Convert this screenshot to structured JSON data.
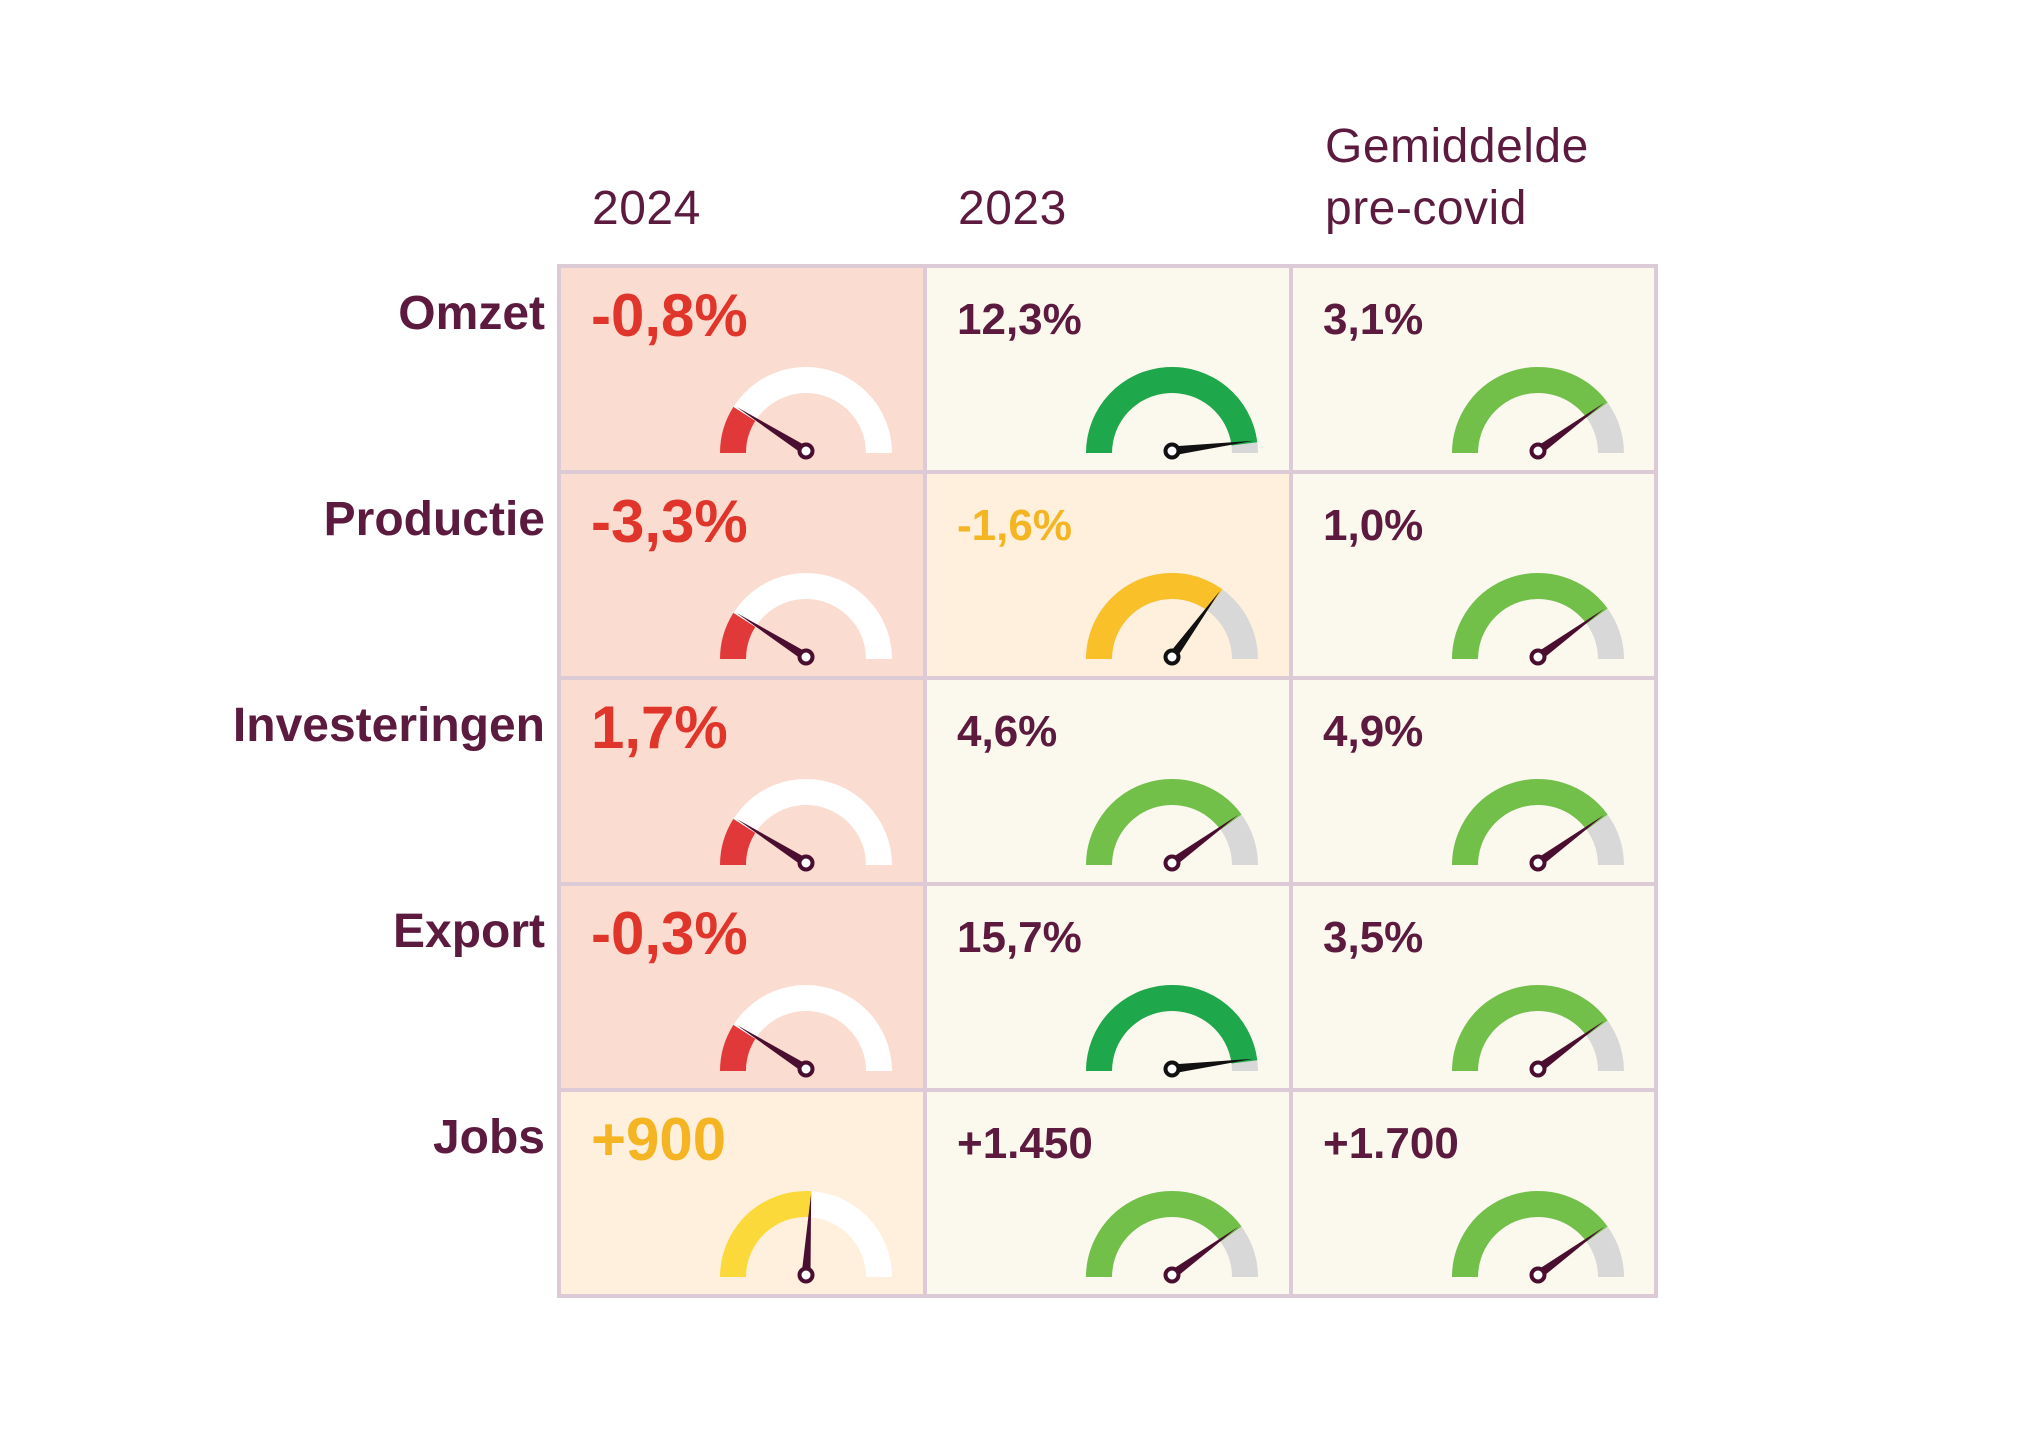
{
  "colors": {
    "text": "#5c1a3f",
    "grid_border": "#dccbd6",
    "cell_bg_neutral": "#fbf8ee",
    "cell_bg_red": "#fadcd0",
    "cell_bg_yellow": "#fef0dc",
    "red_value": "#e0352b",
    "yellow_value": "#f5b522",
    "gauge_red": "#e1393a",
    "gauge_yellow": "#f9c02a",
    "gauge_light_yellow": "#fbd93b",
    "gauge_dark_green": "#1fa74b",
    "gauge_light_green": "#72c04a",
    "gauge_track_grey": "#d8d8d8",
    "gauge_track_white": "#ffffff",
    "needle_dark": "#4a0f30",
    "needle_black": "#111111"
  },
  "chart_data": {
    "type": "table",
    "columns": [
      "2024",
      "2023",
      "Gemiddelde\npre-covid"
    ],
    "columns_display": [
      [
        "2024"
      ],
      [
        "2023"
      ],
      [
        "Gemiddelde",
        "pre-covid"
      ]
    ],
    "rows": [
      "Omzet",
      "Productie",
      "Investeringen",
      "Export",
      "Jobs"
    ],
    "cells": [
      [
        {
          "text": "-0,8%",
          "status": "red",
          "gauge_level": 0.18
        },
        {
          "text": "12,3%",
          "status": "dark_green",
          "gauge_level": 0.96
        },
        {
          "text": "3,1%",
          "status": "green",
          "gauge_level": 0.8
        }
      ],
      [
        {
          "text": "-3,3%",
          "status": "red",
          "gauge_level": 0.18
        },
        {
          "text": "-1,6%",
          "status": "yellow",
          "gauge_level": 0.7
        },
        {
          "text": "1,0%",
          "status": "green",
          "gauge_level": 0.8
        }
      ],
      [
        {
          "text": "1,7%",
          "status": "red",
          "gauge_level": 0.18
        },
        {
          "text": "4,6%",
          "status": "green",
          "gauge_level": 0.8
        },
        {
          "text": "4,9%",
          "status": "green",
          "gauge_level": 0.8
        }
      ],
      [
        {
          "text": "-0,3%",
          "status": "red",
          "gauge_level": 0.18
        },
        {
          "text": "15,7%",
          "status": "dark_green",
          "gauge_level": 0.96
        },
        {
          "text": "3,5%",
          "status": "green",
          "gauge_level": 0.8
        }
      ],
      [
        {
          "text": "+900",
          "status": "light_yellow",
          "gauge_level": 0.52
        },
        {
          "text": "+1.450",
          "status": "green",
          "gauge_level": 0.8
        },
        {
          "text": "+1.700",
          "status": "green",
          "gauge_level": 0.8
        }
      ]
    ]
  }
}
